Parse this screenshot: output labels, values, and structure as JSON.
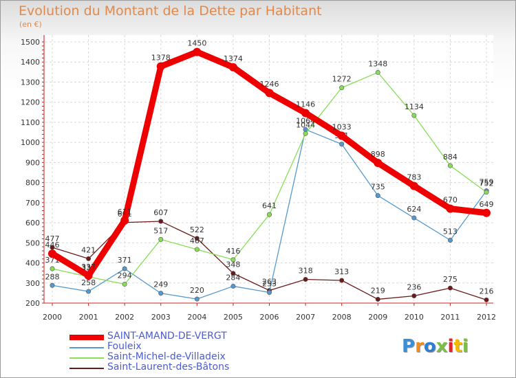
{
  "chart_data": {
    "type": "line",
    "title": "Evolution du Montant de la Dette par Habitant",
    "subtitle": "(en €)",
    "x": [
      "2000",
      "2001",
      "2002",
      "2003",
      "2004",
      "2005",
      "2006",
      "2007",
      "2008",
      "2009",
      "2010",
      "2011",
      "2012"
    ],
    "ylim": [
      200,
      1500
    ],
    "yticks": [
      200,
      300,
      400,
      500,
      600,
      700,
      800,
      900,
      1000,
      1100,
      1200,
      1300,
      1400,
      1500
    ],
    "grid": true,
    "legend_position": "bottom-left",
    "series": [
      {
        "name": "Saint-Laurent-des-Bâtons",
        "color": "#6b1a1a",
        "values": [
          477,
          421,
          601,
          607,
          522,
          348,
          263,
          318,
          313,
          219,
          236,
          275,
          216
        ]
      },
      {
        "name": "Fouleix",
        "color": "#5599cc",
        "values": [
          288,
          258,
          371,
          249,
          220,
          284,
          253,
          1064,
          991,
          735,
          624,
          513,
          759
        ]
      },
      {
        "name": "Saint-Michel-de-Villadeix",
        "color": "#88dd55",
        "values": [
          371,
          331,
          294,
          517,
          467,
          416,
          641,
          1044,
          1272,
          1348,
          1134,
          884,
          752
        ]
      },
      {
        "name": "SAINT-AMAND-DE-VERGT",
        "color": "#ee0000",
        "values": [
          446,
          337,
          611,
          1378,
          1450,
          1374,
          1246,
          1146,
          1033,
          898,
          783,
          670,
          649
        ]
      }
    ]
  },
  "legend": {
    "items": [
      {
        "label": "SAINT-AMAND-DE-VERGT",
        "color": "#ee0000",
        "width": 8
      },
      {
        "label": "Fouleix",
        "color": "#5599cc",
        "width": 2
      },
      {
        "label": "Saint-Michel-de-Villadeix",
        "color": "#88dd55",
        "width": 2
      },
      {
        "label": "Saint-Laurent-des-Bâtons",
        "color": "#6b1a1a",
        "width": 2
      }
    ]
  },
  "logo": {
    "text": "Proxiti",
    "colors": [
      "#3a8fd8",
      "#f28c1e",
      "#2e7fd0",
      "#7ac143",
      "#e8202a",
      "#f5b800",
      "#7ac143"
    ]
  }
}
